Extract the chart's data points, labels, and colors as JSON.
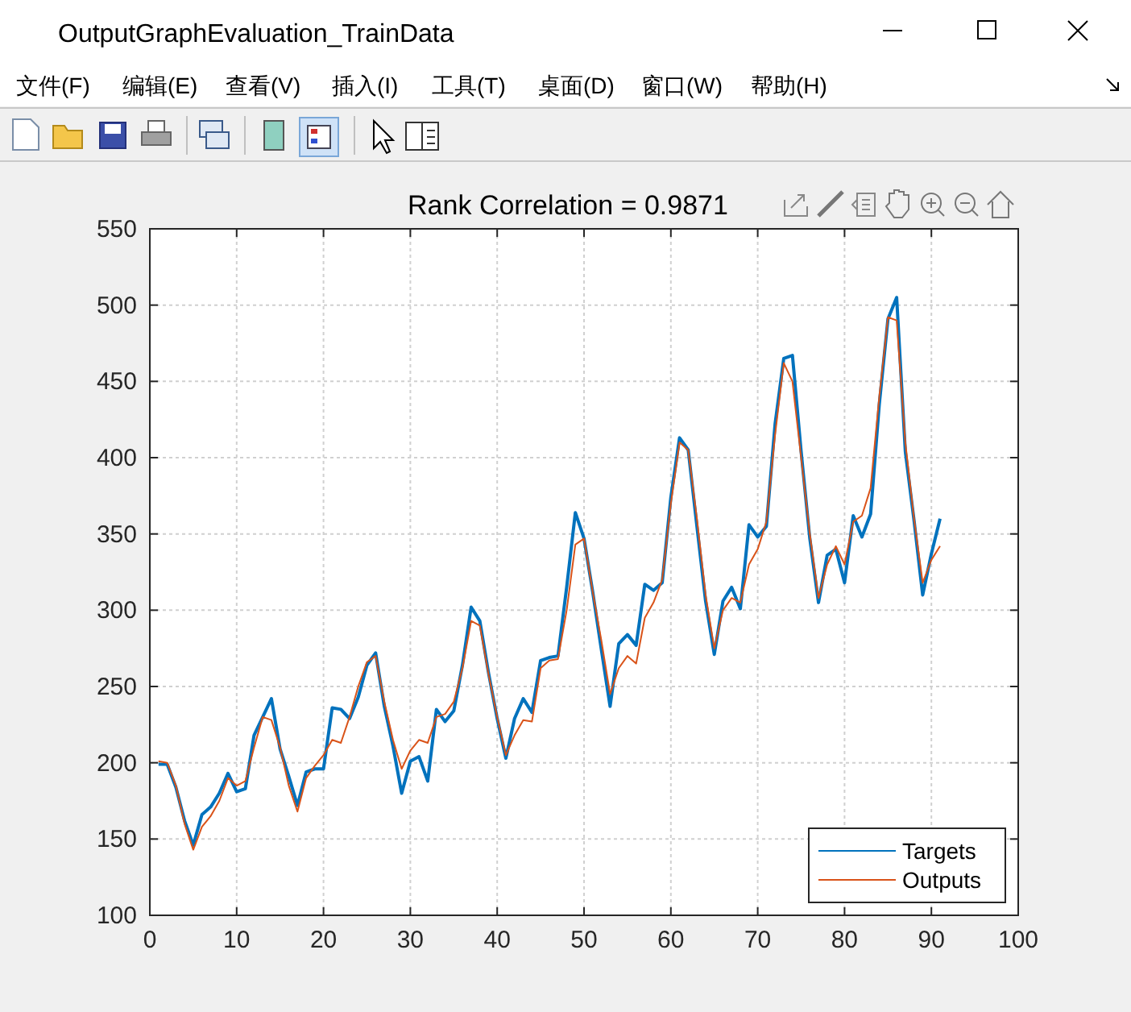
{
  "chart_data": {
    "type": "line",
    "title": "Rank Correlation = 0.9871",
    "annotations": [
      "OutputGraphEvaluation_TrainData",
      "文件(F)",
      "编辑(E)",
      "查看(V)",
      "插入(I)",
      "工具(T)",
      "桌面(D)",
      "窗口(W)",
      "帮助(H)"
    ],
    "x": [
      1,
      2,
      3,
      4,
      5,
      6,
      7,
      8,
      9,
      10,
      11,
      12,
      13,
      14,
      15,
      16,
      17,
      18,
      19,
      20,
      21,
      22,
      23,
      24,
      25,
      26,
      27,
      28,
      29,
      30,
      31,
      32,
      33,
      34,
      35,
      36,
      37,
      38,
      39,
      40,
      41,
      42,
      43,
      44,
      45,
      46,
      47,
      48,
      49,
      50,
      51,
      52,
      53,
      54,
      55,
      56,
      57,
      58,
      59,
      60,
      61,
      62,
      63,
      64,
      65,
      66,
      67,
      68,
      69,
      70,
      71,
      72,
      73,
      74,
      75,
      76,
      77,
      78,
      79,
      80,
      81,
      82,
      83,
      84,
      85,
      86,
      87,
      88,
      89,
      90,
      91
    ],
    "series": [
      {
        "name": "Targets",
        "color": "#0072bd",
        "values": [
          199,
          199,
          184,
          162,
          146,
          166,
          171,
          180,
          193,
          181,
          183,
          218,
          230,
          242,
          209,
          191,
          172,
          194,
          196,
          196,
          236,
          235,
          229,
          243,
          264,
          272,
          237,
          211,
          180,
          201,
          204,
          188,
          235,
          227,
          234,
          264,
          302,
          293,
          259,
          229,
          203,
          229,
          242,
          233,
          267,
          269,
          270,
          315,
          364,
          347,
          312,
          274,
          237,
          278,
          284,
          277,
          317,
          313,
          318,
          374,
          413,
          405,
          355,
          306,
          271,
          306,
          315,
          301,
          356,
          348,
          355,
          422,
          465,
          467,
          404,
          347,
          305,
          336,
          340,
          318,
          362,
          348,
          363,
          435,
          491,
          505,
          404,
          359,
          310,
          337,
          360
        ]
      },
      {
        "name": "Outputs",
        "color": "#d95319",
        "values": [
          201,
          200,
          185,
          160,
          143,
          158,
          165,
          175,
          190,
          185,
          188,
          210,
          230,
          228,
          210,
          185,
          168,
          190,
          198,
          205,
          215,
          213,
          230,
          250,
          266,
          270,
          240,
          215,
          196,
          208,
          215,
          213,
          230,
          232,
          240,
          262,
          293,
          290,
          258,
          230,
          205,
          218,
          228,
          227,
          262,
          267,
          268,
          300,
          343,
          347,
          312,
          280,
          245,
          262,
          270,
          265,
          295,
          305,
          320,
          370,
          410,
          405,
          360,
          310,
          275,
          300,
          308,
          305,
          330,
          340,
          358,
          415,
          462,
          450,
          400,
          350,
          308,
          330,
          342,
          330,
          358,
          362,
          380,
          440,
          492,
          490,
          410,
          360,
          318,
          333,
          342
        ]
      }
    ],
    "xlim": [
      0,
      100
    ],
    "xticks": [
      0,
      10,
      20,
      30,
      40,
      50,
      60,
      70,
      80,
      90,
      100
    ],
    "ylim": [
      100,
      550
    ],
    "yticks": [
      100,
      150,
      200,
      250,
      300,
      350,
      400,
      450,
      500,
      550
    ],
    "grid": true,
    "legend": "bottom right",
    "line_style": "solid",
    "marker": "none"
  }
}
